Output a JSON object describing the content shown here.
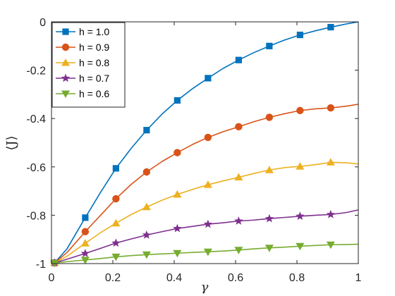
{
  "chart_data": {
    "type": "line",
    "title": "",
    "xlabel": "γ",
    "ylabel": "⟨J⟩",
    "xlim": [
      0,
      1
    ],
    "ylim": [
      -1,
      0
    ],
    "xticks": [
      0,
      0.2,
      0.4,
      0.6,
      0.8,
      1
    ],
    "xtick_labels": [
      "0",
      "0.2",
      "0.4",
      "0.6",
      "0.8",
      "1"
    ],
    "yticks": [
      -1,
      -0.8,
      -0.6,
      -0.4,
      -0.2,
      0
    ],
    "ytick_labels": [
      "-1",
      "-0.8",
      "-0.6",
      "-0.4",
      "-0.2",
      "0"
    ],
    "grid": false,
    "legend_position": "top-left",
    "marker_x": [
      0.01,
      0.11,
      0.21,
      0.31,
      0.41,
      0.51,
      0.61,
      0.71,
      0.81,
      0.91
    ],
    "series": [
      {
        "name": "h = 1.0",
        "color": "#0072BD",
        "marker": "square",
        "x": [
          0,
          0.01,
          0.05,
          0.11,
          0.16,
          0.21,
          0.26,
          0.31,
          0.36,
          0.41,
          0.46,
          0.51,
          0.56,
          0.61,
          0.66,
          0.71,
          0.76,
          0.81,
          0.86,
          0.91,
          0.96,
          1.0
        ],
        "y": [
          -1.0,
          -0.997,
          -0.94,
          -0.81,
          -0.705,
          -0.606,
          -0.523,
          -0.448,
          -0.382,
          -0.325,
          -0.276,
          -0.233,
          -0.192,
          -0.158,
          -0.127,
          -0.1,
          -0.075,
          -0.054,
          -0.037,
          -0.022,
          -0.009,
          0.0
        ]
      },
      {
        "name": "h = 0.9",
        "color": "#D95319",
        "marker": "circle",
        "x": [
          0,
          0.01,
          0.05,
          0.11,
          0.16,
          0.21,
          0.26,
          0.31,
          0.36,
          0.41,
          0.46,
          0.51,
          0.56,
          0.61,
          0.66,
          0.71,
          0.76,
          0.81,
          0.86,
          0.91,
          0.96,
          1.0
        ],
        "y": [
          -1.0,
          -0.997,
          -0.955,
          -0.868,
          -0.8,
          -0.732,
          -0.672,
          -0.621,
          -0.578,
          -0.541,
          -0.507,
          -0.478,
          -0.454,
          -0.434,
          -0.413,
          -0.395,
          -0.38,
          -0.367,
          -0.36,
          -0.356,
          -0.349,
          -0.341
        ]
      },
      {
        "name": "h = 0.8",
        "color": "#EDB120",
        "marker": "triangle-up",
        "x": [
          0,
          0.01,
          0.05,
          0.11,
          0.16,
          0.21,
          0.26,
          0.31,
          0.36,
          0.41,
          0.46,
          0.51,
          0.56,
          0.61,
          0.66,
          0.71,
          0.76,
          0.81,
          0.86,
          0.91,
          0.96,
          1.0
        ],
        "y": [
          -1.0,
          -0.997,
          -0.97,
          -0.916,
          -0.872,
          -0.833,
          -0.797,
          -0.766,
          -0.738,
          -0.714,
          -0.693,
          -0.674,
          -0.658,
          -0.643,
          -0.627,
          -0.613,
          -0.603,
          -0.598,
          -0.591,
          -0.581,
          -0.583,
          -0.588
        ]
      },
      {
        "name": "h = 0.7",
        "color": "#7E2F8E",
        "marker": "star",
        "x": [
          0,
          0.01,
          0.05,
          0.11,
          0.16,
          0.21,
          0.26,
          0.31,
          0.36,
          0.41,
          0.46,
          0.51,
          0.56,
          0.61,
          0.66,
          0.71,
          0.76,
          0.81,
          0.86,
          0.91,
          0.96,
          1.0
        ],
        "y": [
          -1.0,
          -0.997,
          -0.982,
          -0.958,
          -0.937,
          -0.915,
          -0.898,
          -0.882,
          -0.868,
          -0.855,
          -0.846,
          -0.837,
          -0.831,
          -0.824,
          -0.82,
          -0.814,
          -0.809,
          -0.804,
          -0.8,
          -0.797,
          -0.789,
          -0.778
        ]
      },
      {
        "name": "h = 0.6",
        "color": "#77AC30",
        "marker": "triangle-down",
        "x": [
          0,
          0.01,
          0.05,
          0.11,
          0.16,
          0.21,
          0.26,
          0.31,
          0.36,
          0.41,
          0.46,
          0.51,
          0.56,
          0.61,
          0.66,
          0.71,
          0.76,
          0.81,
          0.86,
          0.91,
          0.96,
          1.0
        ],
        "y": [
          -1.0,
          -0.998,
          -0.992,
          -0.985,
          -0.979,
          -0.972,
          -0.967,
          -0.963,
          -0.96,
          -0.957,
          -0.954,
          -0.951,
          -0.948,
          -0.944,
          -0.939,
          -0.935,
          -0.932,
          -0.928,
          -0.925,
          -0.922,
          -0.921,
          -0.92
        ]
      }
    ]
  }
}
